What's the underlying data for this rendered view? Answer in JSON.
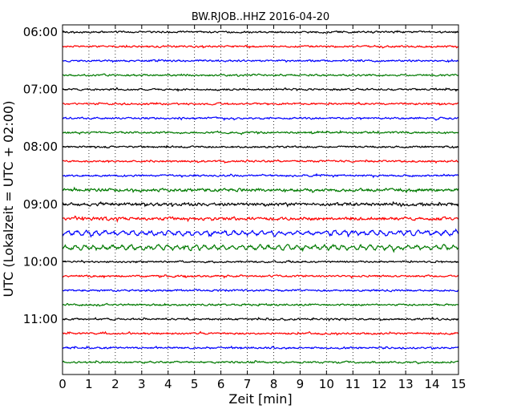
{
  "chart_data": {
    "type": "line",
    "title": "BW.RJOB..HHZ 2016-04-20",
    "xlabel": "Zeit  [min]",
    "ylabel": "UTC (Lokalzeit = UTC + 02:00)",
    "xlim": [
      0,
      15
    ],
    "xticks": [
      0,
      1,
      2,
      3,
      4,
      5,
      6,
      7,
      8,
      9,
      10,
      11,
      12,
      13,
      14,
      15
    ],
    "yticks": [
      "06:00",
      "07:00",
      "08:00",
      "09:00",
      "10:00",
      "11:00"
    ],
    "grid": "vertical dotted",
    "colors": [
      "#000000",
      "#ff0000",
      "#0000ff",
      "#007a00"
    ],
    "trace_interval_minutes": 15,
    "traces": [
      {
        "start": "06:00",
        "color": "#000000"
      },
      {
        "start": "06:15",
        "color": "#ff0000"
      },
      {
        "start": "06:30",
        "color": "#0000ff"
      },
      {
        "start": "06:45",
        "color": "#007a00"
      },
      {
        "start": "07:00",
        "color": "#000000"
      },
      {
        "start": "07:15",
        "color": "#ff0000"
      },
      {
        "start": "07:30",
        "color": "#0000ff"
      },
      {
        "start": "07:45",
        "color": "#007a00"
      },
      {
        "start": "08:00",
        "color": "#000000"
      },
      {
        "start": "08:15",
        "color": "#ff0000"
      },
      {
        "start": "08:30",
        "color": "#0000ff"
      },
      {
        "start": "08:45",
        "color": "#007a00"
      },
      {
        "start": "09:00",
        "color": "#000000"
      },
      {
        "start": "09:15",
        "color": "#ff0000"
      },
      {
        "start": "09:30",
        "color": "#0000ff"
      },
      {
        "start": "09:45",
        "color": "#007a00"
      },
      {
        "start": "10:00",
        "color": "#000000"
      },
      {
        "start": "10:15",
        "color": "#ff0000"
      },
      {
        "start": "10:30",
        "color": "#0000ff"
      },
      {
        "start": "10:45",
        "color": "#007a00"
      },
      {
        "start": "11:00",
        "color": "#000000"
      },
      {
        "start": "11:15",
        "color": "#ff0000"
      },
      {
        "start": "11:30",
        "color": "#0000ff"
      },
      {
        "start": "11:45",
        "color": "#007a00"
      }
    ]
  }
}
